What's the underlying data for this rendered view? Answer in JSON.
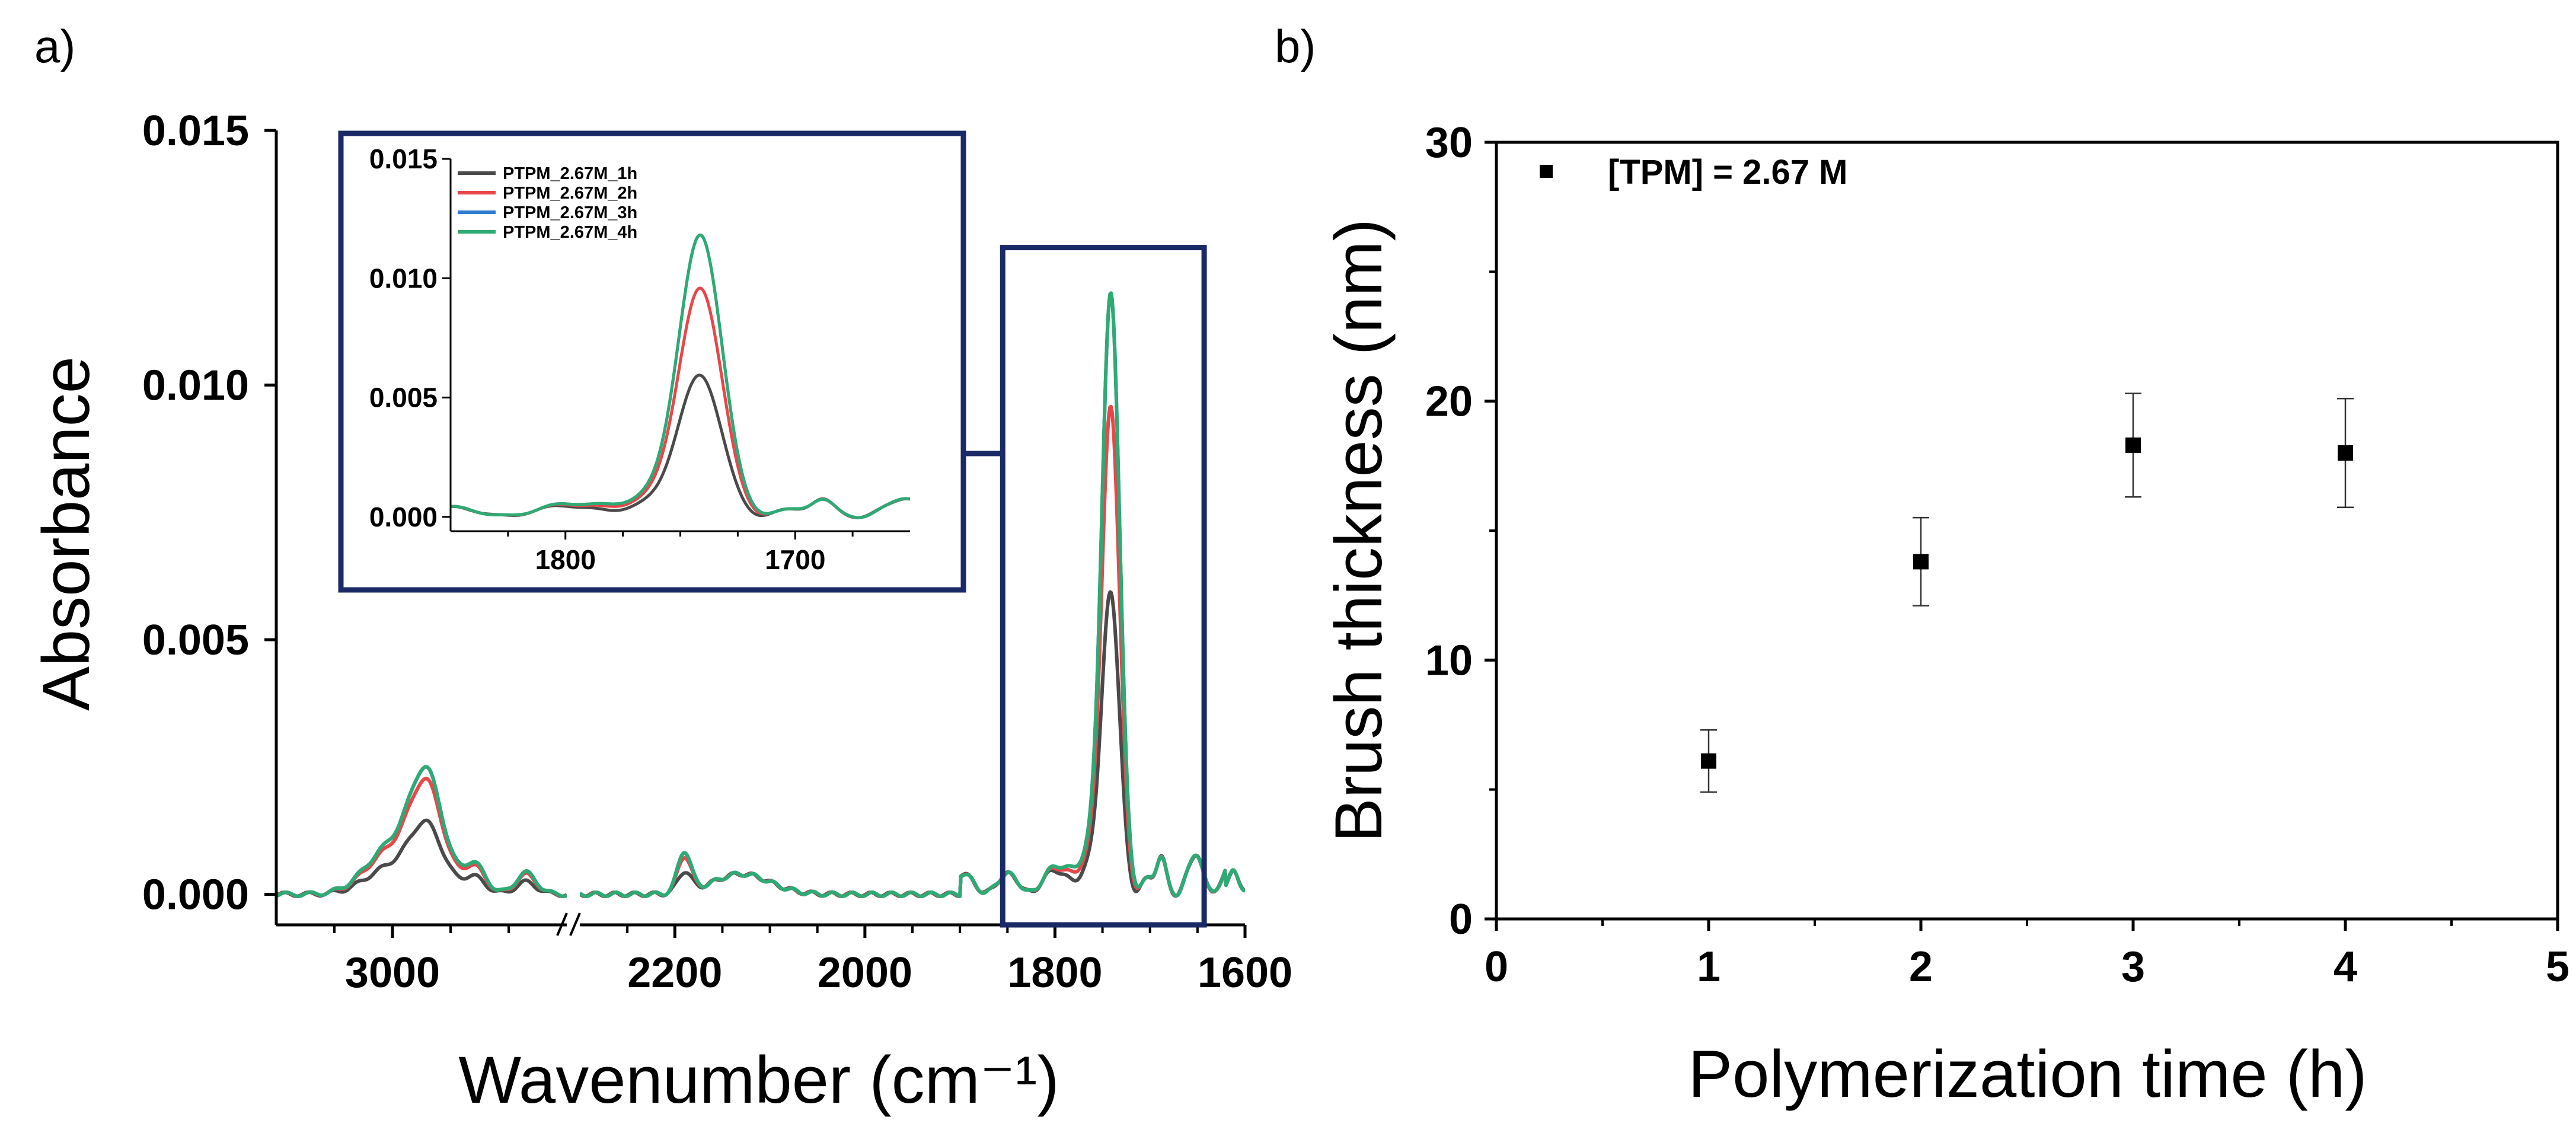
{
  "chart_data": [
    {
      "id": "a",
      "panel_label": "a)",
      "type": "line",
      "title": "",
      "xlabel": "Wavenumber (cm⁻¹)",
      "ylabel": "Absorbance",
      "x_reversed": true,
      "x_break": [
        2850,
        2300
      ],
      "xlim_segment1": [
        3100,
        2850
      ],
      "xlim_segment2": [
        2300,
        1600
      ],
      "ylim": [
        -0.0006,
        0.015
      ],
      "xticks": [
        "3000",
        "2200",
        "2000",
        "1800",
        "1600"
      ],
      "xtick_values": [
        3000,
        2200,
        2000,
        1800,
        1600
      ],
      "yticks": [
        "0.000",
        "0.005",
        "0.010",
        "0.015"
      ],
      "ytick_values": [
        0.0,
        0.005,
        0.01,
        0.015
      ],
      "highlight_box_x": [
        1855,
        1643
      ],
      "highlight_box_y": [
        -0.0006,
        0.0127
      ],
      "series": [
        {
          "name": "PTPM_2.67M_1h",
          "color": "#4a4a4a",
          "peak_2970": 0.0012,
          "peak_2190": 0.0004,
          "peak_1740": 0.0057
        },
        {
          "name": "PTPM_2.67M_2h",
          "color": "#e8474a",
          "peak_2970": 0.0019,
          "peak_2190": 0.0007,
          "peak_1740": 0.0093
        },
        {
          "name": "PTPM_2.67M_3h",
          "color": "#2f7dd3",
          "peak_2970": 0.0021,
          "peak_2190": 0.0008,
          "peak_1740": 0.0115
        },
        {
          "name": "PTPM_2.67M_4h",
          "color": "#2eaa73",
          "peak_2970": 0.0021,
          "peak_2190": 0.0008,
          "peak_1740": 0.0115
        }
      ],
      "inset": {
        "xlim": [
          1850,
          1650
        ],
        "ylim": [
          -0.0006,
          0.015
        ],
        "xticks": [
          "1800",
          "1700"
        ],
        "xtick_values": [
          1800,
          1700
        ],
        "yticks": [
          "0.000",
          "0.005",
          "0.010",
          "0.015"
        ],
        "ytick_values": [
          0.0,
          0.005,
          0.01,
          0.015
        ],
        "legend": [
          "PTPM_2.67M_1h",
          "PTPM_2.67M_2h",
          "PTPM_2.67M_3h",
          "PTPM_2.67M_4h"
        ]
      }
    },
    {
      "id": "b",
      "panel_label": "b)",
      "type": "scatter",
      "title": "",
      "xlabel": "Polymerization time (h)",
      "ylabel": "Brush thickness (nm)",
      "xlim": [
        0,
        5
      ],
      "ylim": [
        0,
        30
      ],
      "xticks": [
        "0",
        "1",
        "2",
        "3",
        "4",
        "5"
      ],
      "xtick_values": [
        0,
        1,
        2,
        3,
        4,
        5
      ],
      "yticks": [
        "0",
        "10",
        "20",
        "30"
      ],
      "ytick_values": [
        0,
        10,
        20,
        30
      ],
      "legend": "[TPM] = 2.67 M",
      "legend_position": "top-left",
      "series": [
        {
          "name": "[TPM] = 2.67 M",
          "x": [
            1,
            2,
            3,
            4
          ],
          "y": [
            6.1,
            13.8,
            18.3,
            18.0
          ],
          "error": [
            1.2,
            1.7,
            2.0,
            2.1
          ]
        }
      ]
    }
  ]
}
